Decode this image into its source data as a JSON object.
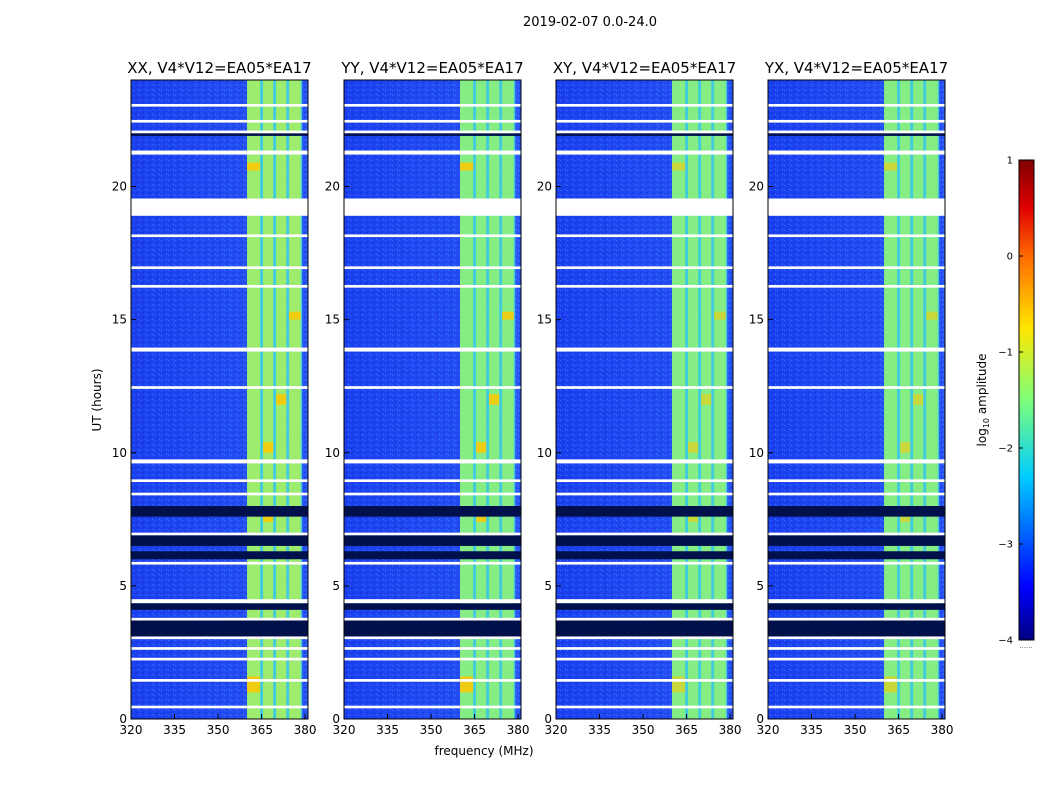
{
  "figure": {
    "suptitle": "2019-02-07 0.0-24.0",
    "ylabel": "UT (hours)",
    "xlabel": "frequency (MHz)"
  },
  "chart_data": {
    "type": "heatmap",
    "title": "2019-02-07 0.0-24.0",
    "xlabel": "frequency (MHz)",
    "ylabel": "UT (hours)",
    "xlim": [
      320,
      381
    ],
    "ylim": [
      0,
      24
    ],
    "xticks": [
      320,
      335,
      350,
      365,
      380
    ],
    "yticks": [
      0,
      5,
      10,
      15,
      20
    ],
    "panels": [
      {
        "title": "XX, V4*V12=EA05*EA17"
      },
      {
        "title": "YY, V4*V12=EA05*EA17"
      },
      {
        "title": "XY, V4*V12=EA05*EA17"
      },
      {
        "title": "YX, V4*V12=EA05*EA17"
      }
    ],
    "band": {
      "region_mhz": [
        360,
        379
      ],
      "stripes_mhz": [
        [
          360,
          364.5
        ],
        [
          365.5,
          369
        ],
        [
          370,
          373.5
        ],
        [
          374.5,
          378.5
        ]
      ]
    },
    "data_gaps_hours": [
      [
        0.4,
        0.5
      ],
      [
        1.4,
        1.5
      ],
      [
        2.2,
        2.3
      ],
      [
        2.6,
        2.7
      ],
      [
        3.0,
        3.1
      ],
      [
        3.7,
        3.8
      ],
      [
        4.35,
        4.5
      ],
      [
        5.8,
        5.9
      ],
      [
        6.9,
        7.0
      ],
      [
        8.4,
        8.5
      ],
      [
        8.9,
        9.0
      ],
      [
        9.6,
        9.75
      ],
      [
        12.4,
        12.5
      ],
      [
        13.8,
        13.95
      ],
      [
        16.2,
        16.3
      ],
      [
        16.9,
        17.0
      ],
      [
        18.1,
        18.2
      ],
      [
        18.9,
        19.55
      ],
      [
        21.2,
        21.35
      ],
      [
        22.0,
        22.1
      ],
      [
        22.4,
        22.5
      ],
      [
        23.0,
        23.1
      ]
    ],
    "bad_data_hours": [
      [
        3.1,
        3.7
      ],
      [
        4.1,
        4.35
      ],
      [
        6.0,
        6.3
      ],
      [
        6.5,
        6.9
      ],
      [
        7.6,
        8.0
      ],
      [
        19.0,
        19.1
      ],
      [
        19.4,
        19.55
      ],
      [
        21.9,
        22.0
      ]
    ],
    "colorbar": {
      "label": "log10 amplitude",
      "label_main": "log",
      "label_sub": "10",
      "label_rest": " amplitude",
      "range": [
        -4,
        1
      ],
      "ticks": [
        "1",
        "0",
        "−1",
        "−2",
        "−3",
        "−4"
      ],
      "extra": "......"
    }
  }
}
